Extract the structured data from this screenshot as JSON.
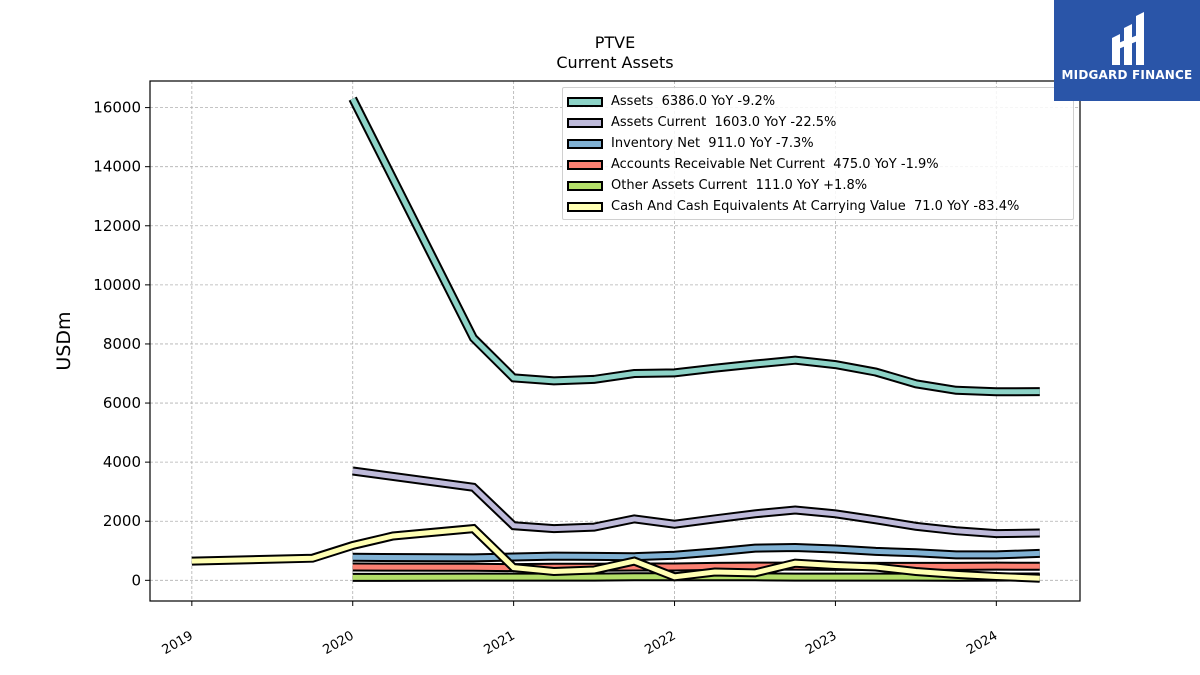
{
  "logo": {
    "text": "MIDGARD FINANCE",
    "background": "#2a55a8"
  },
  "chart_data": {
    "type": "line",
    "title": "PTVE",
    "subtitle": "Current  Assets",
    "ylabel": "USDm",
    "xlabel": "",
    "ylim": [
      -700,
      16900
    ],
    "xlim": [
      2018.74,
      2024.52
    ],
    "yticks": [
      0,
      2000,
      4000,
      6000,
      8000,
      10000,
      12000,
      14000,
      16000
    ],
    "xticks": [
      {
        "label": "2019",
        "value": 2019.0
      },
      {
        "label": "2020",
        "value": 2020.0
      },
      {
        "label": "2021",
        "value": 2021.0
      },
      {
        "label": "2022",
        "value": 2022.0
      },
      {
        "label": "2023",
        "value": 2023.0
      },
      {
        "label": "2024",
        "value": 2024.0
      }
    ],
    "grid": true,
    "legend_position": "top-right",
    "series": [
      {
        "name": "Assets  6386.0 YoY -9.2%",
        "color": "#8dd3c7",
        "x": [
          2020.0,
          2020.75,
          2021.0,
          2021.25,
          2021.5,
          2021.75,
          2022.0,
          2022.25,
          2022.5,
          2022.75,
          2023.0,
          2023.25,
          2023.5,
          2023.75,
          2024.0,
          2024.27
        ],
        "values": [
          16300,
          8200,
          6850,
          6750,
          6800,
          7000,
          7020,
          7180,
          7320,
          7450,
          7300,
          7050,
          6650,
          6430,
          6380,
          6386
        ]
      },
      {
        "name": "Assets Current  1603.0 YoY -22.5%",
        "color": "#bebada",
        "x": [
          2020.0,
          2020.75,
          2021.0,
          2021.25,
          2021.5,
          2021.75,
          2022.0,
          2022.25,
          2022.5,
          2022.75,
          2023.0,
          2023.25,
          2023.5,
          2023.75,
          2024.0,
          2024.27
        ],
        "values": [
          3700,
          3150,
          1850,
          1750,
          1800,
          2080,
          1900,
          2080,
          2250,
          2380,
          2250,
          2050,
          1830,
          1680,
          1580,
          1603
        ]
      },
      {
        "name": "Inventory Net  911.0 YoY -7.3%",
        "color": "#80b1d3",
        "x": [
          2020.0,
          2020.75,
          2021.0,
          2021.25,
          2021.5,
          2021.75,
          2022.0,
          2022.25,
          2022.5,
          2022.75,
          2023.0,
          2023.25,
          2023.5,
          2023.75,
          2024.0,
          2024.27
        ],
        "values": [
          780,
          760,
          790,
          820,
          810,
          800,
          850,
          960,
          1090,
          1110,
          1060,
          980,
          930,
          860,
          860,
          911
        ]
      },
      {
        "name": "Accounts Receivable Net Current  475.0 YoY -1.9%",
        "color": "#fb8072",
        "x": [
          2020.0,
          2020.75,
          2021.0,
          2021.25,
          2021.5,
          2021.75,
          2022.0,
          2022.25,
          2022.5,
          2022.75,
          2023.0,
          2023.25,
          2023.5,
          2023.75,
          2024.0,
          2024.27
        ],
        "values": [
          450,
          440,
          430,
          440,
          440,
          450,
          450,
          470,
          480,
          480,
          470,
          470,
          470,
          470,
          480,
          475
        ]
      },
      {
        "name": "Other Assets Current  111.0 YoY +1.8%",
        "color": "#b3de69",
        "x": [
          2020.0,
          2020.75,
          2021.0,
          2021.25,
          2021.5,
          2021.75,
          2022.0,
          2022.25,
          2022.5,
          2022.75,
          2023.0,
          2023.25,
          2023.5,
          2023.75,
          2024.0,
          2024.27
        ],
        "values": [
          100,
          110,
          110,
          110,
          110,
          120,
          120,
          120,
          120,
          110,
          110,
          110,
          110,
          105,
          110,
          111
        ]
      },
      {
        "name": "Cash And Cash Equivalents At Carrying Value  71.0 YoY -83.4%",
        "color": "#ffffb3",
        "x": [
          2019.0,
          2019.75,
          2020.0,
          2020.25,
          2020.75,
          2021.0,
          2021.25,
          2021.5,
          2021.75,
          2022.0,
          2022.25,
          2022.5,
          2022.75,
          2023.0,
          2023.25,
          2023.5,
          2023.75,
          2024.0,
          2024.27
        ],
        "values": [
          650,
          750,
          1180,
          1500,
          1750,
          430,
          300,
          350,
          650,
          120,
          280,
          250,
          580,
          500,
          450,
          300,
          200,
          130,
          71
        ]
      }
    ]
  }
}
